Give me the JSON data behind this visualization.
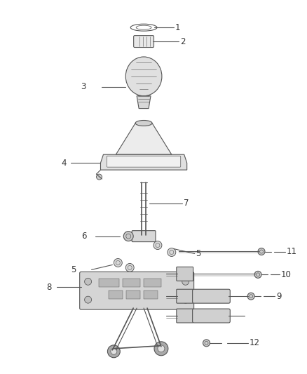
{
  "background_color": "#ffffff",
  "fig_width": 4.38,
  "fig_height": 5.33,
  "dpi": 100,
  "line_color": "#555555",
  "label_color": "#333333",
  "label_fontsize": 8.5,
  "parts_color": "#cccccc",
  "detail_color": "#aaaaaa"
}
